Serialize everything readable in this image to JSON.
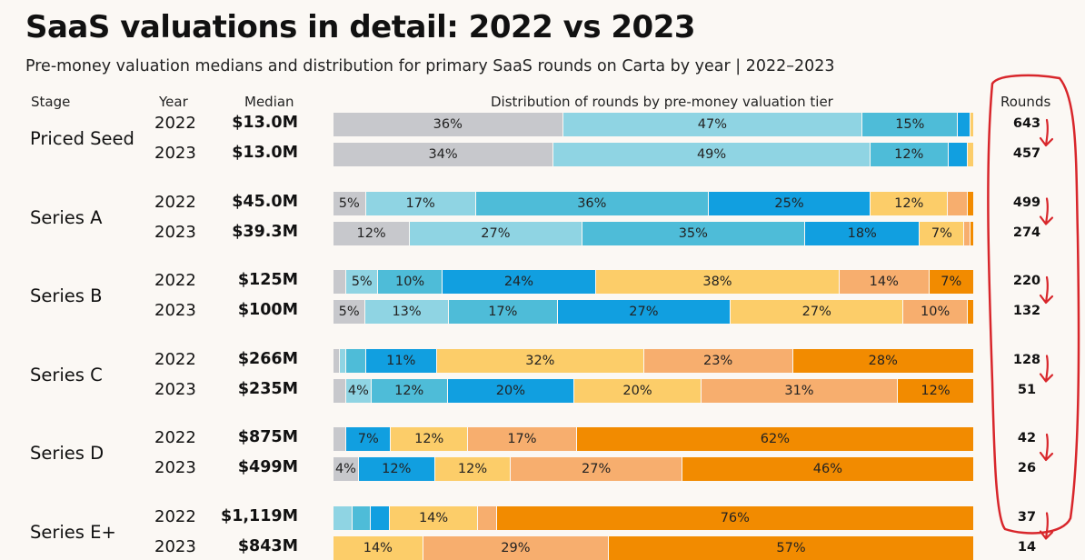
{
  "title": "SaaS valuations in detail: 2022 vs 2023",
  "subtitle": "Pre-money valuation medians and distribution for primary SaaS rounds on Carta by year | 2022–2023",
  "headers": {
    "stage": "Stage",
    "year": "Year",
    "median": "Median",
    "distribution": "Distribution of rounds by pre-money valuation tier",
    "rounds": "Rounds"
  },
  "colors": {
    "tiers": [
      "#c7c8cc",
      "#8fd4e3",
      "#4ebcd8",
      "#119fe0",
      "#fccd69",
      "#f7ae6e",
      "#f28b00"
    ],
    "annotation": "#d8262b"
  },
  "chart_data": {
    "type": "bar",
    "orientation": "horizontal-stacked-100",
    "title": "SaaS valuations in detail: 2022 vs 2023",
    "subtitle": "Pre-money valuation medians and distribution for primary SaaS rounds on Carta by year | 2022–2023",
    "xlabel": "Distribution of rounds by pre-money valuation tier",
    "stages": [
      {
        "name": "Priced Seed",
        "rows": [
          {
            "year": "2022",
            "median": "$13.0M",
            "rounds": "643",
            "segments": [
              36,
              47,
              15,
              2,
              0.5,
              0,
              0
            ],
            "labels": [
              "36%",
              "47%",
              "15%",
              "",
              "",
              "",
              ""
            ]
          },
          {
            "year": "2023",
            "median": "$13.0M",
            "rounds": "457",
            "segments": [
              34,
              49,
              12,
              3,
              1,
              0,
              0
            ],
            "labels": [
              "34%",
              "49%",
              "12%",
              "",
              "",
              "",
              ""
            ]
          }
        ]
      },
      {
        "name": "Series A",
        "rows": [
          {
            "year": "2022",
            "median": "$45.0M",
            "rounds": "499",
            "segments": [
              5,
              17,
              36,
              25,
              12,
              3,
              1
            ],
            "labels": [
              "5%",
              "17%",
              "36%",
              "25%",
              "12%",
              "",
              ""
            ]
          },
          {
            "year": "2023",
            "median": "$39.3M",
            "rounds": "274",
            "segments": [
              12,
              27,
              35,
              18,
              7,
              1,
              0.5
            ],
            "labels": [
              "12%",
              "27%",
              "35%",
              "18%",
              "7%",
              "",
              ""
            ]
          }
        ]
      },
      {
        "name": "Series B",
        "rows": [
          {
            "year": "2022",
            "median": "$125M",
            "rounds": "220",
            "segments": [
              2,
              5,
              10,
              24,
              38,
              14,
              7
            ],
            "labels": [
              "",
              "5%",
              "10%",
              "24%",
              "38%",
              "14%",
              "7%"
            ]
          },
          {
            "year": "2023",
            "median": "$100M",
            "rounds": "132",
            "segments": [
              5,
              13,
              17,
              27,
              27,
              10,
              1
            ],
            "labels": [
              "5%",
              "13%",
              "17%",
              "27%",
              "27%",
              "10%",
              ""
            ]
          }
        ]
      },
      {
        "name": "Series C",
        "rows": [
          {
            "year": "2022",
            "median": "$266M",
            "rounds": "128",
            "segments": [
              1,
              1,
              3,
              11,
              32,
              23,
              28
            ],
            "labels": [
              "",
              "",
              "",
              "11%",
              "32%",
              "23%",
              "28%"
            ]
          },
          {
            "year": "2023",
            "median": "$235M",
            "rounds": "51",
            "segments": [
              2,
              4,
              12,
              20,
              20,
              31,
              12
            ],
            "labels": [
              "",
              "4%",
              "12%",
              "20%",
              "20%",
              "31%",
              "12%"
            ]
          }
        ]
      },
      {
        "name": "Series D",
        "rows": [
          {
            "year": "2022",
            "median": "$875M",
            "rounds": "42",
            "segments": [
              2,
              0,
              0,
              7,
              12,
              17,
              62
            ],
            "labels": [
              "",
              "",
              "",
              "7%",
              "12%",
              "17%",
              "62%"
            ]
          },
          {
            "year": "2023",
            "median": "$499M",
            "rounds": "26",
            "segments": [
              4,
              0,
              0,
              12,
              12,
              27,
              46
            ],
            "labels": [
              "4%",
              "",
              "",
              "12%",
              "12%",
              "27%",
              "46%"
            ]
          }
        ]
      },
      {
        "name": "Series E+",
        "rows": [
          {
            "year": "2022",
            "median": "$1,119M",
            "rounds": "37",
            "segments": [
              0,
              3,
              3,
              3,
              14,
              3,
              76
            ],
            "labels": [
              "",
              "",
              "",
              "",
              "14%",
              "",
              "76%"
            ]
          },
          {
            "year": "2023",
            "median": "$843M",
            "rounds": "14",
            "segments": [
              0,
              0,
              0,
              0,
              14,
              29,
              57
            ],
            "labels": [
              "",
              "",
              "",
              "",
              "14%",
              "29%",
              "57%"
            ]
          }
        ]
      }
    ],
    "xlim": [
      0,
      100
    ],
    "grid": false,
    "legend": "none"
  }
}
